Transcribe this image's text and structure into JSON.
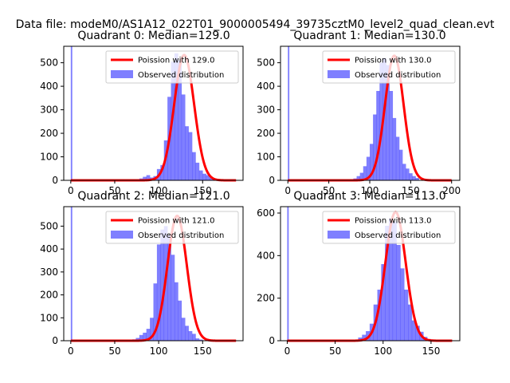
{
  "figure": {
    "suptitle": "Data file: modeM0/AS1A12_022T01_9000005494_39735cztM0_level2_quad_clean.evt",
    "colors": {
      "hist": "#0000ff",
      "hist_opacity": 0.5,
      "poisson": "#ff0000"
    }
  },
  "chart_data": [
    {
      "type": "bar",
      "title": "Quadrant 0: Median=129.0",
      "median": 129.0,
      "xlabel": "",
      "ylabel": "",
      "xlim": [
        -8,
        196
      ],
      "ylim": [
        0,
        570
      ],
      "xticks": [
        0,
        50,
        100,
        150
      ],
      "yticks": [
        0,
        100,
        200,
        300,
        400,
        500
      ],
      "legend": {
        "placement": "top-right",
        "entries": [
          "Poission with 129.0",
          "Observed distribution"
        ]
      },
      "spike": {
        "x": [
          0,
          1.7
        ],
        "value": 570
      },
      "histogram": {
        "x_start": 78,
        "bin_width": 4,
        "values": [
          8,
          15,
          22,
          12,
          18,
          48,
          65,
          170,
          355,
          505,
          540,
          510,
          365,
          230,
          205,
          120,
          75,
          42,
          28,
          22,
          10
        ]
      },
      "poisson": {
        "mean": 129.0,
        "scale": 533,
        "sigma": 11.36,
        "x_range": [
          0,
          188
        ]
      }
    },
    {
      "type": "bar",
      "title": "Quadrant 1: Median=130.0",
      "median": 130.0,
      "xlabel": "",
      "ylabel": "",
      "xlim": [
        -9,
        210
      ],
      "ylim": [
        0,
        570
      ],
      "xticks": [
        0,
        50,
        100,
        150,
        200
      ],
      "yticks": [
        0,
        100,
        200,
        300,
        400,
        500
      ],
      "legend": {
        "placement": "top-right",
        "entries": [
          "Poission with 130.0",
          "Observed distribution"
        ]
      },
      "spike": {
        "x": [
          0,
          1.8
        ],
        "value": 570
      },
      "histogram": {
        "x_start": 80,
        "bin_width": 4,
        "values": [
          8,
          18,
          32,
          60,
          100,
          155,
          280,
          380,
          500,
          520,
          490,
          380,
          265,
          185,
          130,
          70,
          50,
          30,
          18,
          10
        ]
      },
      "poisson": {
        "mean": 130.0,
        "scale": 530,
        "sigma": 11.4,
        "x_range": [
          0,
          200
        ]
      }
    },
    {
      "type": "bar",
      "title": "Quadrant 2: Median=121.0",
      "median": 121.0,
      "xlabel": "",
      "ylabel": "",
      "xlim": [
        -8,
        196
      ],
      "ylim": [
        0,
        585
      ],
      "xticks": [
        0,
        50,
        100,
        150
      ],
      "yticks": [
        0,
        100,
        200,
        300,
        400,
        500
      ],
      "legend": {
        "placement": "top-right",
        "entries": [
          "Poission with 121.0",
          "Observed distribution"
        ]
      },
      "spike": {
        "x": [
          0,
          1.7
        ],
        "value": 585
      },
      "histogram": {
        "x_start": 70,
        "bin_width": 4,
        "values": [
          6,
          12,
          25,
          35,
          52,
          100,
          250,
          420,
          485,
          500,
          460,
          375,
          255,
          175,
          100,
          65,
          42,
          30,
          10,
          5
        ]
      },
      "poisson": {
        "mean": 121.0,
        "scale": 545,
        "sigma": 11.0,
        "x_range": [
          0,
          188
        ]
      }
    },
    {
      "type": "bar",
      "title": "Quadrant 3: Median=113.0",
      "median": 113.0,
      "xlabel": "",
      "ylabel": "",
      "xlim": [
        -7,
        180
      ],
      "ylim": [
        0,
        630
      ],
      "xticks": [
        0,
        50,
        100,
        150
      ],
      "yticks": [
        0,
        200,
        400,
        600
      ],
      "legend": {
        "placement": "top-right",
        "entries": [
          "Poission with 113.0",
          "Observed distribution"
        ]
      },
      "spike": {
        "x": [
          0,
          1.6
        ],
        "value": 630
      },
      "histogram": {
        "x_start": 70,
        "bin_width": 4,
        "values": [
          5,
          15,
          28,
          45,
          80,
          170,
          240,
          360,
          540,
          575,
          560,
          450,
          340,
          240,
          170,
          95,
          70,
          42,
          18,
          8
        ]
      },
      "poisson": {
        "mean": 113.0,
        "scale": 605,
        "sigma": 10.6,
        "x_range": [
          0,
          172
        ]
      }
    }
  ]
}
